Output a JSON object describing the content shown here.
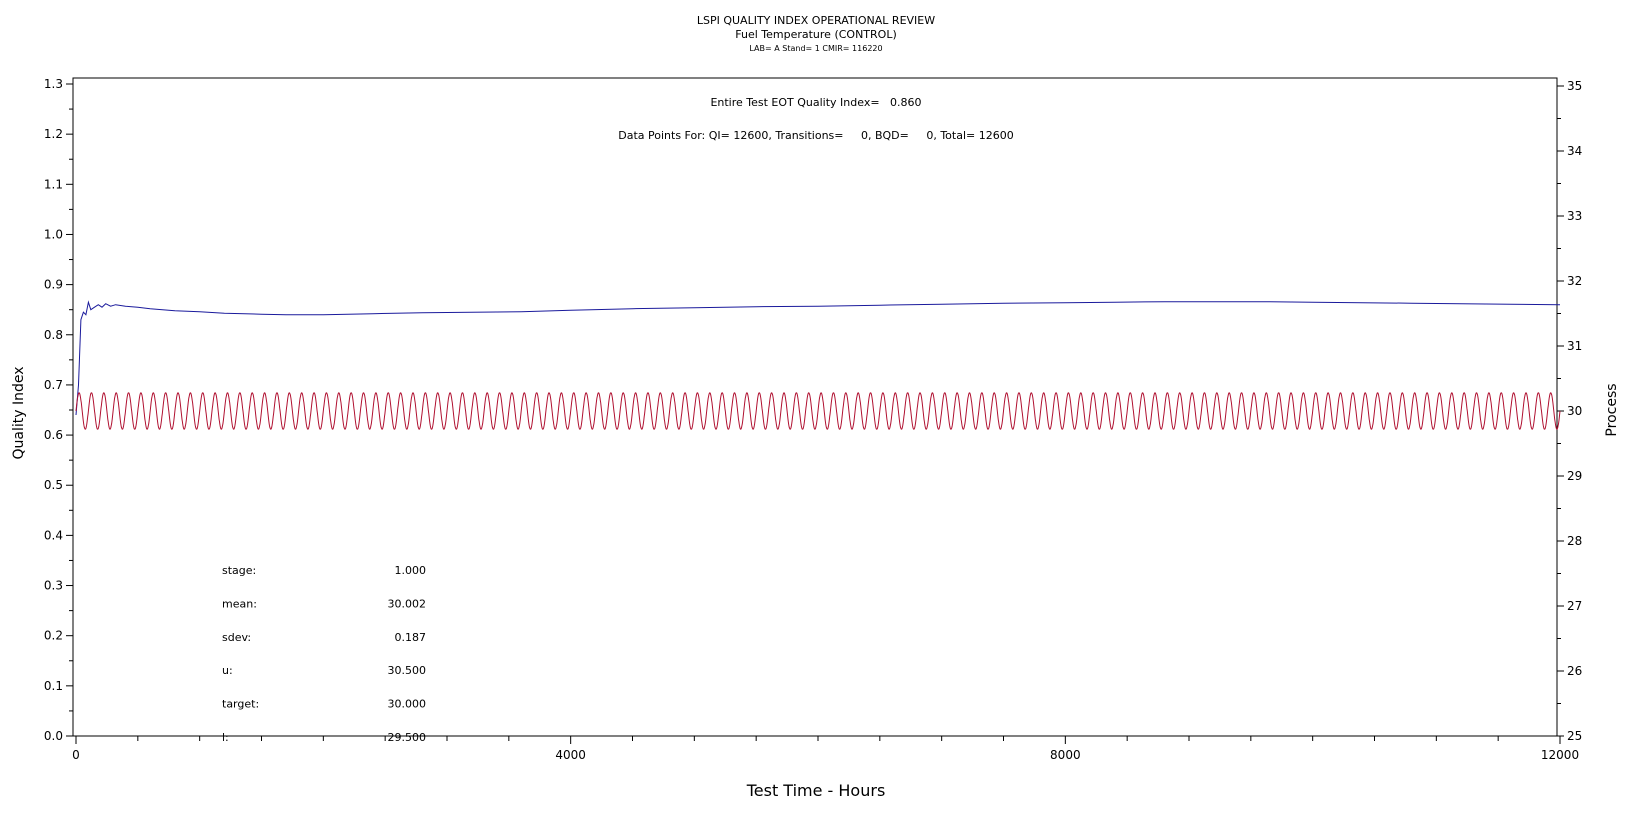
{
  "chart_data": {
    "type": "line",
    "title": "LSPI QUALITY INDEX OPERATIONAL REVIEW",
    "subtitle": "Fuel Temperature (CONTROL)",
    "subsubtitle": "LAB= A Stand= 1 CMIR= 116220",
    "xlabel": "Test Time - Hours",
    "ylabel_left": "Quality Index",
    "ylabel_right": "Process",
    "xlim": [
      0,
      12000
    ],
    "ylim_left": [
      0.0,
      1.3
    ],
    "ylim_right": [
      25,
      35
    ],
    "x_ticks": [
      0,
      4000,
      8000,
      12000
    ],
    "x_tick_labels": [
      "0",
      "4000",
      "8000",
      "12000"
    ],
    "y_left_ticks": [
      0.0,
      0.1,
      0.2,
      0.3,
      0.4,
      0.5,
      0.6,
      0.7,
      0.8,
      0.9,
      1.0,
      1.1,
      1.2,
      1.3
    ],
    "y_left_tick_labels": [
      "0.0",
      "0.1",
      "0.2",
      "0.3",
      "0.4",
      "0.5",
      "0.6",
      "0.7",
      "0.8",
      "0.9",
      "1.0",
      "1.1",
      "1.2",
      "1.3"
    ],
    "y_right_ticks": [
      25,
      26,
      27,
      28,
      29,
      30,
      31,
      32,
      33,
      34,
      35
    ],
    "y_right_tick_labels": [
      "25",
      "26",
      "27",
      "28",
      "29",
      "30",
      "31",
      "32",
      "33",
      "34",
      "35"
    ],
    "grid": false,
    "annotations": {
      "eot_line": "Entire Test EOT Quality Index=   0.860",
      "data_points_line": "Data Points For: QI= 12600, Transitions=     0, BQD=     0, Total= 12600"
    },
    "stats": [
      {
        "label": "stage:",
        "value": "1.000"
      },
      {
        "label": "mean:",
        "value": "30.002"
      },
      {
        "label": "sdev:",
        "value": "0.187"
      },
      {
        "label": "u:",
        "value": "30.500"
      },
      {
        "label": "target:",
        "value": "30.000"
      },
      {
        "label": "l:",
        "value": "29.500"
      }
    ],
    "series": [
      {
        "axis": "left",
        "color": "#1a1a9c",
        "x": [
          0,
          20,
          40,
          60,
          80,
          100,
          120,
          150,
          180,
          210,
          240,
          280,
          320,
          400,
          500,
          600,
          800,
          1000,
          1200,
          1500,
          1700,
          2000,
          2400,
          2800,
          3200,
          3600,
          4000,
          4500,
          5000,
          5500,
          6000,
          6500,
          7000,
          7500,
          8000,
          8400,
          8800,
          9200,
          9600,
          10000,
          10400,
          10800,
          11200,
          11600,
          12000
        ],
        "y": [
          0.64,
          0.7,
          0.83,
          0.845,
          0.84,
          0.865,
          0.85,
          0.855,
          0.86,
          0.855,
          0.862,
          0.857,
          0.86,
          0.857,
          0.855,
          0.852,
          0.848,
          0.846,
          0.843,
          0.841,
          0.84,
          0.84,
          0.842,
          0.844,
          0.845,
          0.846,
          0.849,
          0.852,
          0.854,
          0.856,
          0.857,
          0.859,
          0.861,
          0.863,
          0.864,
          0.865,
          0.866,
          0.866,
          0.866,
          0.865,
          0.864,
          0.863,
          0.862,
          0.861,
          0.86
        ]
      },
      {
        "axis": "right",
        "color": "#b01030",
        "target": 30.0,
        "amplitude": 0.28,
        "cycles": 120,
        "x_start": 0,
        "x_end": 12000
      }
    ]
  }
}
